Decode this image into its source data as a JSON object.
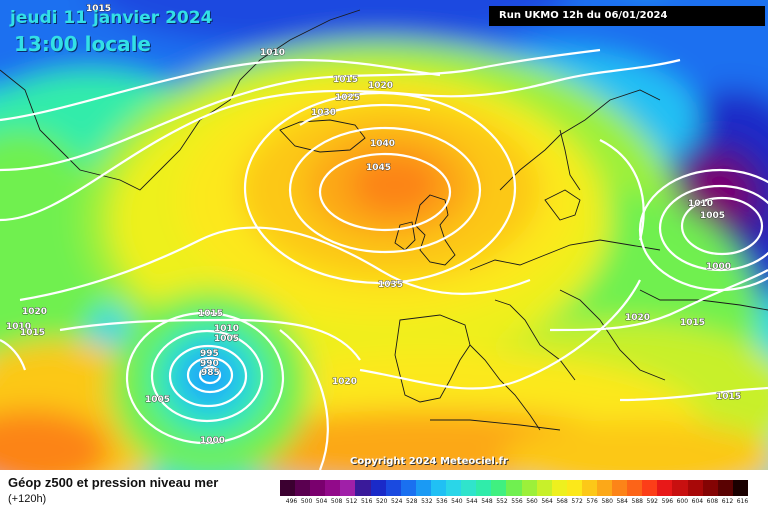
{
  "header": {
    "date": "jeudi 11 janvier 2024",
    "time": "13:00 locale",
    "run": "Run UKMO 12h du 06/01/2024"
  },
  "map": {
    "copyright": "Copyright 2024 Meteociel.fr",
    "isobars": [
      "1015",
      "1010",
      "1015",
      "1020",
      "1025",
      "1030",
      "1040",
      "1045",
      "1035",
      "1015",
      "1010",
      "1005",
      "995",
      "990",
      "985",
      "1005",
      "1000",
      "1020",
      "1020",
      "1010",
      "1005",
      "1000",
      "1015",
      "1020",
      "1015",
      "1010",
      "1015"
    ]
  },
  "footer": {
    "title": "Géop z500 et pression niveau mer",
    "subtitle": "(+120h)"
  },
  "scale": {
    "ticks": [
      "496",
      "500",
      "504",
      "508",
      "512",
      "516",
      "520",
      "524",
      "528",
      "532",
      "536",
      "540",
      "544",
      "548",
      "552",
      "556",
      "560",
      "564",
      "568",
      "572",
      "576",
      "580",
      "584",
      "588",
      "592",
      "596",
      "600",
      "604",
      "608",
      "612",
      "616"
    ],
    "colors": [
      "#3b0030",
      "#5a0050",
      "#7a006e",
      "#920a8a",
      "#a020a8",
      "#3a1a9a",
      "#1a2ac8",
      "#1a4ae0",
      "#1a70f0",
      "#1a9af4",
      "#20c0f4",
      "#2ad6e8",
      "#30e4cc",
      "#30ecaa",
      "#40f080",
      "#70f050",
      "#9cf03a",
      "#c8f02a",
      "#eef01e",
      "#fce81a",
      "#fcc818",
      "#fca818",
      "#fc8418",
      "#fc6418",
      "#fc3e18",
      "#e81818",
      "#c81010",
      "#a80808",
      "#840404",
      "#5a0202",
      "#1a0000"
    ]
  }
}
